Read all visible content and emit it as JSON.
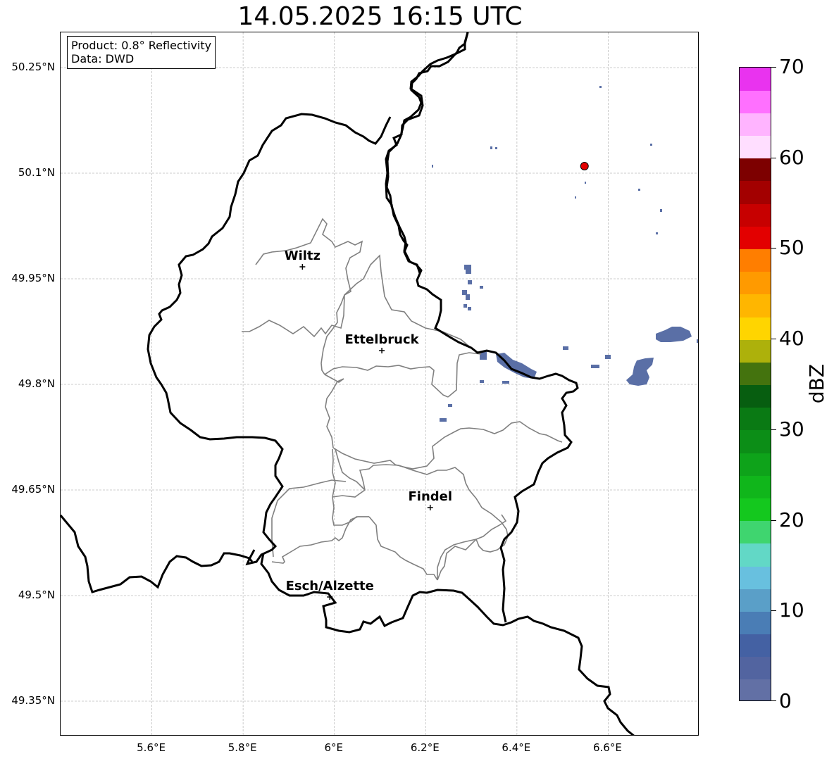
{
  "title": "14.05.2025 16:15 UTC",
  "info_box": {
    "product": "Product: 0.8° Reflectivity",
    "source": "Data: DWD"
  },
  "map": {
    "extent": {
      "lon_min": 5.4,
      "lon_max": 6.8,
      "lat_min": 49.3,
      "lat_max": 50.3
    },
    "lat_ticks": [
      {
        "value": 50.25,
        "label": "50.25°N"
      },
      {
        "value": 50.1,
        "label": "50.1°N"
      },
      {
        "value": 49.95,
        "label": "49.95°N"
      },
      {
        "value": 49.8,
        "label": "49.8°N"
      },
      {
        "value": 49.65,
        "label": "49.65°N"
      },
      {
        "value": 49.5,
        "label": "49.5°N"
      },
      {
        "value": 49.35,
        "label": "49.35°N"
      }
    ],
    "lon_ticks": [
      {
        "value": 5.6,
        "label": "5.6°E"
      },
      {
        "value": 5.8,
        "label": "5.8°E"
      },
      {
        "value": 6.0,
        "label": "6°E"
      },
      {
        "value": 6.2,
        "label": "6.2°E"
      },
      {
        "value": 6.4,
        "label": "6.4°E"
      },
      {
        "value": 6.6,
        "label": "6.6°E"
      }
    ],
    "gridlines": true,
    "cities": [
      {
        "name": "Wiltz",
        "lon": 5.93,
        "lat": 49.967
      },
      {
        "name": "Ettelbruck",
        "lon": 6.104,
        "lat": 49.848
      },
      {
        "name": "Findel",
        "lon": 6.21,
        "lat": 49.625
      },
      {
        "name": "Esch/Alzette",
        "lon": 5.99,
        "lat": 49.498
      }
    ],
    "radar_site": {
      "lon": 6.548,
      "lat": 50.11,
      "color": "#e30000"
    },
    "echo_color": "#5a6fa6"
  },
  "colorbar": {
    "label": "dBZ",
    "min": 0,
    "max": 70,
    "ticks": [
      "0",
      "10",
      "20",
      "30",
      "40",
      "50",
      "60",
      "70"
    ],
    "colors": [
      "#6270a5",
      "#5264a0",
      "#4461a3",
      "#4a7db5",
      "#5a9fc8",
      "#68c0df",
      "#62d8c6",
      "#3fd56f",
      "#14c81e",
      "#10b61b",
      "#0ea31a",
      "#0c8e17",
      "#0a7a14",
      "#075e10",
      "#44730e",
      "#adb10b",
      "#ffd500",
      "#ffb600",
      "#ff9a00",
      "#ff7e00",
      "#e30000",
      "#c70000",
      "#a30000",
      "#7d0000",
      "#ffdeff",
      "#ffb4ff",
      "#ff70ff",
      "#e933ef"
    ]
  }
}
